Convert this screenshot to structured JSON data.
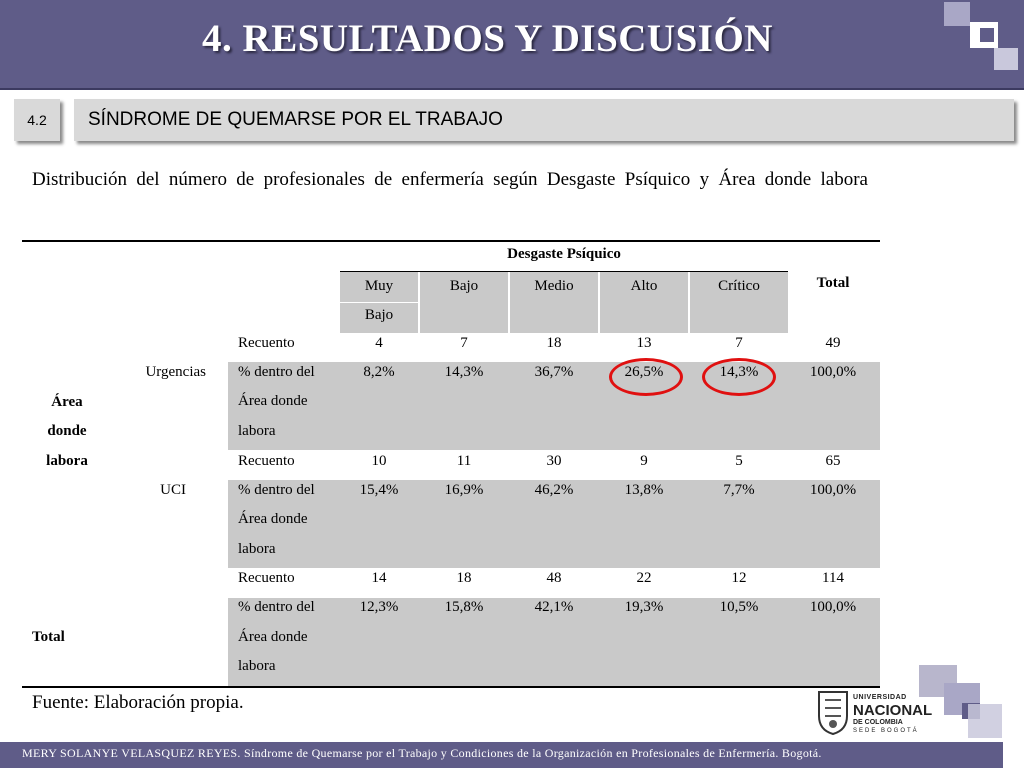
{
  "header": {
    "title": "4. RESULTADOS Y DISCUSIÓN"
  },
  "section": {
    "number": "4.2",
    "title": "SÍNDROME DE QUEMARSE POR EL TRABAJO"
  },
  "description": "Distribución del número de profesionales de enfermería según Desgaste Psíquico y Área donde labora",
  "table": {
    "group_header": "Desgaste Psíquico",
    "columns": [
      {
        "l1": "Muy",
        "l2": "Bajo"
      },
      {
        "l1": "Bajo",
        "l2": ""
      },
      {
        "l1": "Medio",
        "l2": ""
      },
      {
        "l1": "Alto",
        "l2": ""
      },
      {
        "l1": "Crítico",
        "l2": ""
      }
    ],
    "total_header": "Total",
    "row_group": {
      "l1": "Área",
      "l2": "donde",
      "l3": "labora"
    },
    "pct_label": {
      "l1": "% dentro del",
      "l2": "Área donde",
      "l3": "labora"
    },
    "count_label": "Recuento",
    "rows": [
      {
        "area": "Urgencias",
        "counts": [
          "4",
          "7",
          "18",
          "13",
          "7",
          "49"
        ],
        "pcts": [
          "8,2%",
          "14,3%",
          "36,7%",
          "26,5%",
          "14,3%",
          "100,0%"
        ]
      },
      {
        "area": "UCI",
        "counts": [
          "10",
          "11",
          "30",
          "9",
          "5",
          "65"
        ],
        "pcts": [
          "15,4%",
          "16,9%",
          "46,2%",
          "13,8%",
          "7,7%",
          "100,0%"
        ]
      },
      {
        "area": "",
        "counts": [
          "14",
          "18",
          "48",
          "22",
          "12",
          "114"
        ],
        "pcts": [
          "12,3%",
          "15,8%",
          "42,1%",
          "19,3%",
          "10,5%",
          "100,0%"
        ]
      }
    ],
    "total_label": "Total"
  },
  "source": "Fuente: Elaboración propia.",
  "logo": {
    "line1": "UNIVERSIDAD",
    "line2": "NACIONAL",
    "line3": "DE COLOMBIA",
    "line4": "SEDE BOGOTÁ"
  },
  "footer": {
    "text": "MERY SOLANYE VELASQUEZ REYES. Síndrome de Quemarse por el Trabajo y Condiciones de la Organización en Profesionales de Enfermería. Bogotá."
  },
  "colors": {
    "header_bg": "#5f5c88",
    "section_bg": "#d9d9d9",
    "shade": "#c9c9c9",
    "highlight": "#e01010"
  }
}
